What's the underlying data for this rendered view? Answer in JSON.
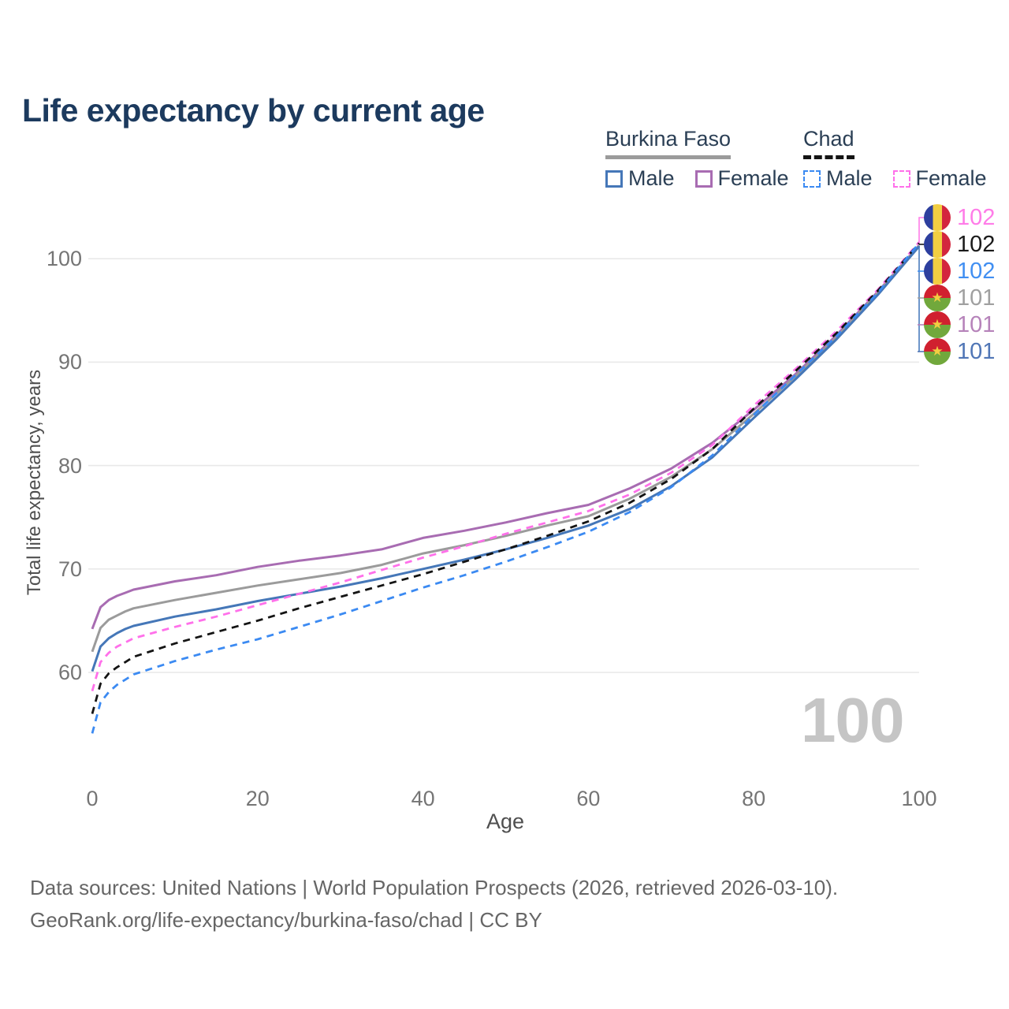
{
  "title": "Life expectancy by current age",
  "legend": {
    "groups": [
      {
        "label": "Burkina Faso",
        "style": "solid",
        "underline_color": "#9b9b9b",
        "items": [
          {
            "label": "Male",
            "color": "#4577b8"
          },
          {
            "label": "Female",
            "color": "#a86cb2"
          }
        ]
      },
      {
        "label": "Chad",
        "style": "dashed",
        "underline_color": "#141414",
        "items": [
          {
            "label": "Male",
            "color": "#3b8af2"
          },
          {
            "label": "Female",
            "color": "#ff70ea"
          }
        ]
      }
    ]
  },
  "y_axis": {
    "title": "Total life expectancy, years",
    "ticks": [
      100,
      90,
      80,
      70,
      60
    ]
  },
  "x_axis": {
    "title": "Age",
    "ticks": [
      0,
      20,
      40,
      60,
      80,
      100
    ]
  },
  "end_labels": [
    {
      "value": "102",
      "color": "#ff7ce8",
      "flag": "chad",
      "series": "Chad Female"
    },
    {
      "value": "102",
      "color": "#1a1a1a",
      "flag": "chad",
      "series": "Chad Both sexes"
    },
    {
      "value": "102",
      "color": "#418ff2",
      "flag": "chad",
      "series": "Chad Male"
    },
    {
      "value": "101",
      "color": "#a0a0a0",
      "flag": "burkina_faso",
      "series": "Burkina Faso Both sexes"
    },
    {
      "value": "101",
      "color": "#b683ba",
      "flag": "burkina_faso",
      "series": "Burkina Faso Female"
    },
    {
      "value": "101",
      "color": "#5076b6",
      "flag": "burkina_faso",
      "series": "Burkina Faso Male"
    }
  ],
  "flags": {
    "chad": {
      "orientation": "vertical",
      "stripes": [
        "#2d3f9e",
        "#f2ce42",
        "#d3263e"
      ]
    },
    "burkina_faso": {
      "orientation": "horizontal",
      "top": "#d0202f",
      "bottom": "#71a83c",
      "star": "#f2ce42"
    }
  },
  "watermark": "100",
  "footer": {
    "line1": "Data sources: United Nations | World Population Prospects (2026, retrieved 2026-03-10).",
    "line2": "GeoRank.org/life-expectancy/burkina-faso/chad | CC BY"
  },
  "chart_data": {
    "type": "line",
    "title": "Life expectancy by current age",
    "xlabel": "Age",
    "ylabel": "Total life expectancy, years",
    "xlim": [
      0,
      100
    ],
    "ylim": [
      53,
      104
    ],
    "x_ticks": [
      0,
      20,
      40,
      60,
      80,
      100
    ],
    "y_ticks": [
      60,
      70,
      80,
      90,
      100
    ],
    "grid": "horizontal",
    "legend_position": "top-right",
    "x": [
      0,
      1,
      2,
      3,
      4,
      5,
      10,
      15,
      20,
      25,
      30,
      35,
      40,
      45,
      50,
      55,
      60,
      65,
      70,
      75,
      80,
      85,
      90,
      95,
      100
    ],
    "series": [
      {
        "name": "Burkina Faso Female",
        "country": "Burkina Faso",
        "sex": "Female",
        "style": "solid",
        "color": "#a86cb2",
        "end_label": 101,
        "values": [
          64.2,
          66.3,
          67.0,
          67.4,
          67.7,
          68.0,
          68.8,
          69.4,
          70.2,
          70.8,
          71.3,
          71.9,
          73.0,
          73.7,
          74.5,
          75.4,
          76.2,
          77.8,
          79.7,
          82.2,
          85.4,
          88.8,
          92.6,
          96.8,
          101.3
        ]
      },
      {
        "name": "Burkina Faso Both sexes",
        "country": "Burkina Faso",
        "sex": "Both",
        "style": "solid",
        "color": "#9b9b9b",
        "end_label": 101,
        "values": [
          62.0,
          64.3,
          65.1,
          65.5,
          65.9,
          66.2,
          67.0,
          67.7,
          68.4,
          69.0,
          69.6,
          70.4,
          71.5,
          72.3,
          73.2,
          74.2,
          75.1,
          76.8,
          78.9,
          81.6,
          85.0,
          88.6,
          92.4,
          96.7,
          101.3
        ]
      },
      {
        "name": "Burkina Faso Male",
        "country": "Burkina Faso",
        "sex": "Male",
        "style": "solid",
        "color": "#4577b8",
        "end_label": 101,
        "values": [
          60.1,
          62.5,
          63.3,
          63.8,
          64.2,
          64.5,
          65.4,
          66.1,
          66.9,
          67.6,
          68.3,
          69.1,
          70.0,
          70.9,
          71.9,
          73.0,
          74.2,
          75.8,
          78.0,
          80.8,
          84.6,
          88.3,
          92.2,
          96.5,
          101.2
        ]
      },
      {
        "name": "Chad Female",
        "country": "Chad",
        "sex": "Female",
        "style": "dashed",
        "color": "#ff70ea",
        "end_label": 102,
        "values": [
          58.2,
          61.0,
          61.9,
          62.5,
          62.9,
          63.3,
          64.4,
          65.4,
          66.5,
          67.6,
          68.7,
          69.9,
          71.1,
          72.2,
          73.4,
          74.5,
          75.6,
          77.2,
          79.3,
          82.0,
          85.8,
          89.3,
          93.0,
          97.0,
          101.6
        ]
      },
      {
        "name": "Chad Both sexes",
        "country": "Chad",
        "sex": "Both",
        "style": "dashed",
        "color": "#141414",
        "end_label": 102,
        "values": [
          56.0,
          58.9,
          59.9,
          60.5,
          61.0,
          61.5,
          62.8,
          63.9,
          65.0,
          66.2,
          67.3,
          68.4,
          69.5,
          70.7,
          71.9,
          73.2,
          74.6,
          76.4,
          78.7,
          81.6,
          85.5,
          89.1,
          92.8,
          96.9,
          101.5
        ]
      },
      {
        "name": "Chad Male",
        "country": "Chad",
        "sex": "Male",
        "style": "dashed",
        "color": "#3b8af2",
        "end_label": 102,
        "values": [
          54.1,
          57.1,
          58.1,
          58.8,
          59.3,
          59.8,
          61.1,
          62.2,
          63.2,
          64.4,
          65.6,
          66.9,
          68.2,
          69.4,
          70.7,
          72.1,
          73.6,
          75.5,
          77.9,
          81.0,
          84.9,
          88.7,
          92.5,
          96.7,
          101.5
        ]
      }
    ]
  }
}
